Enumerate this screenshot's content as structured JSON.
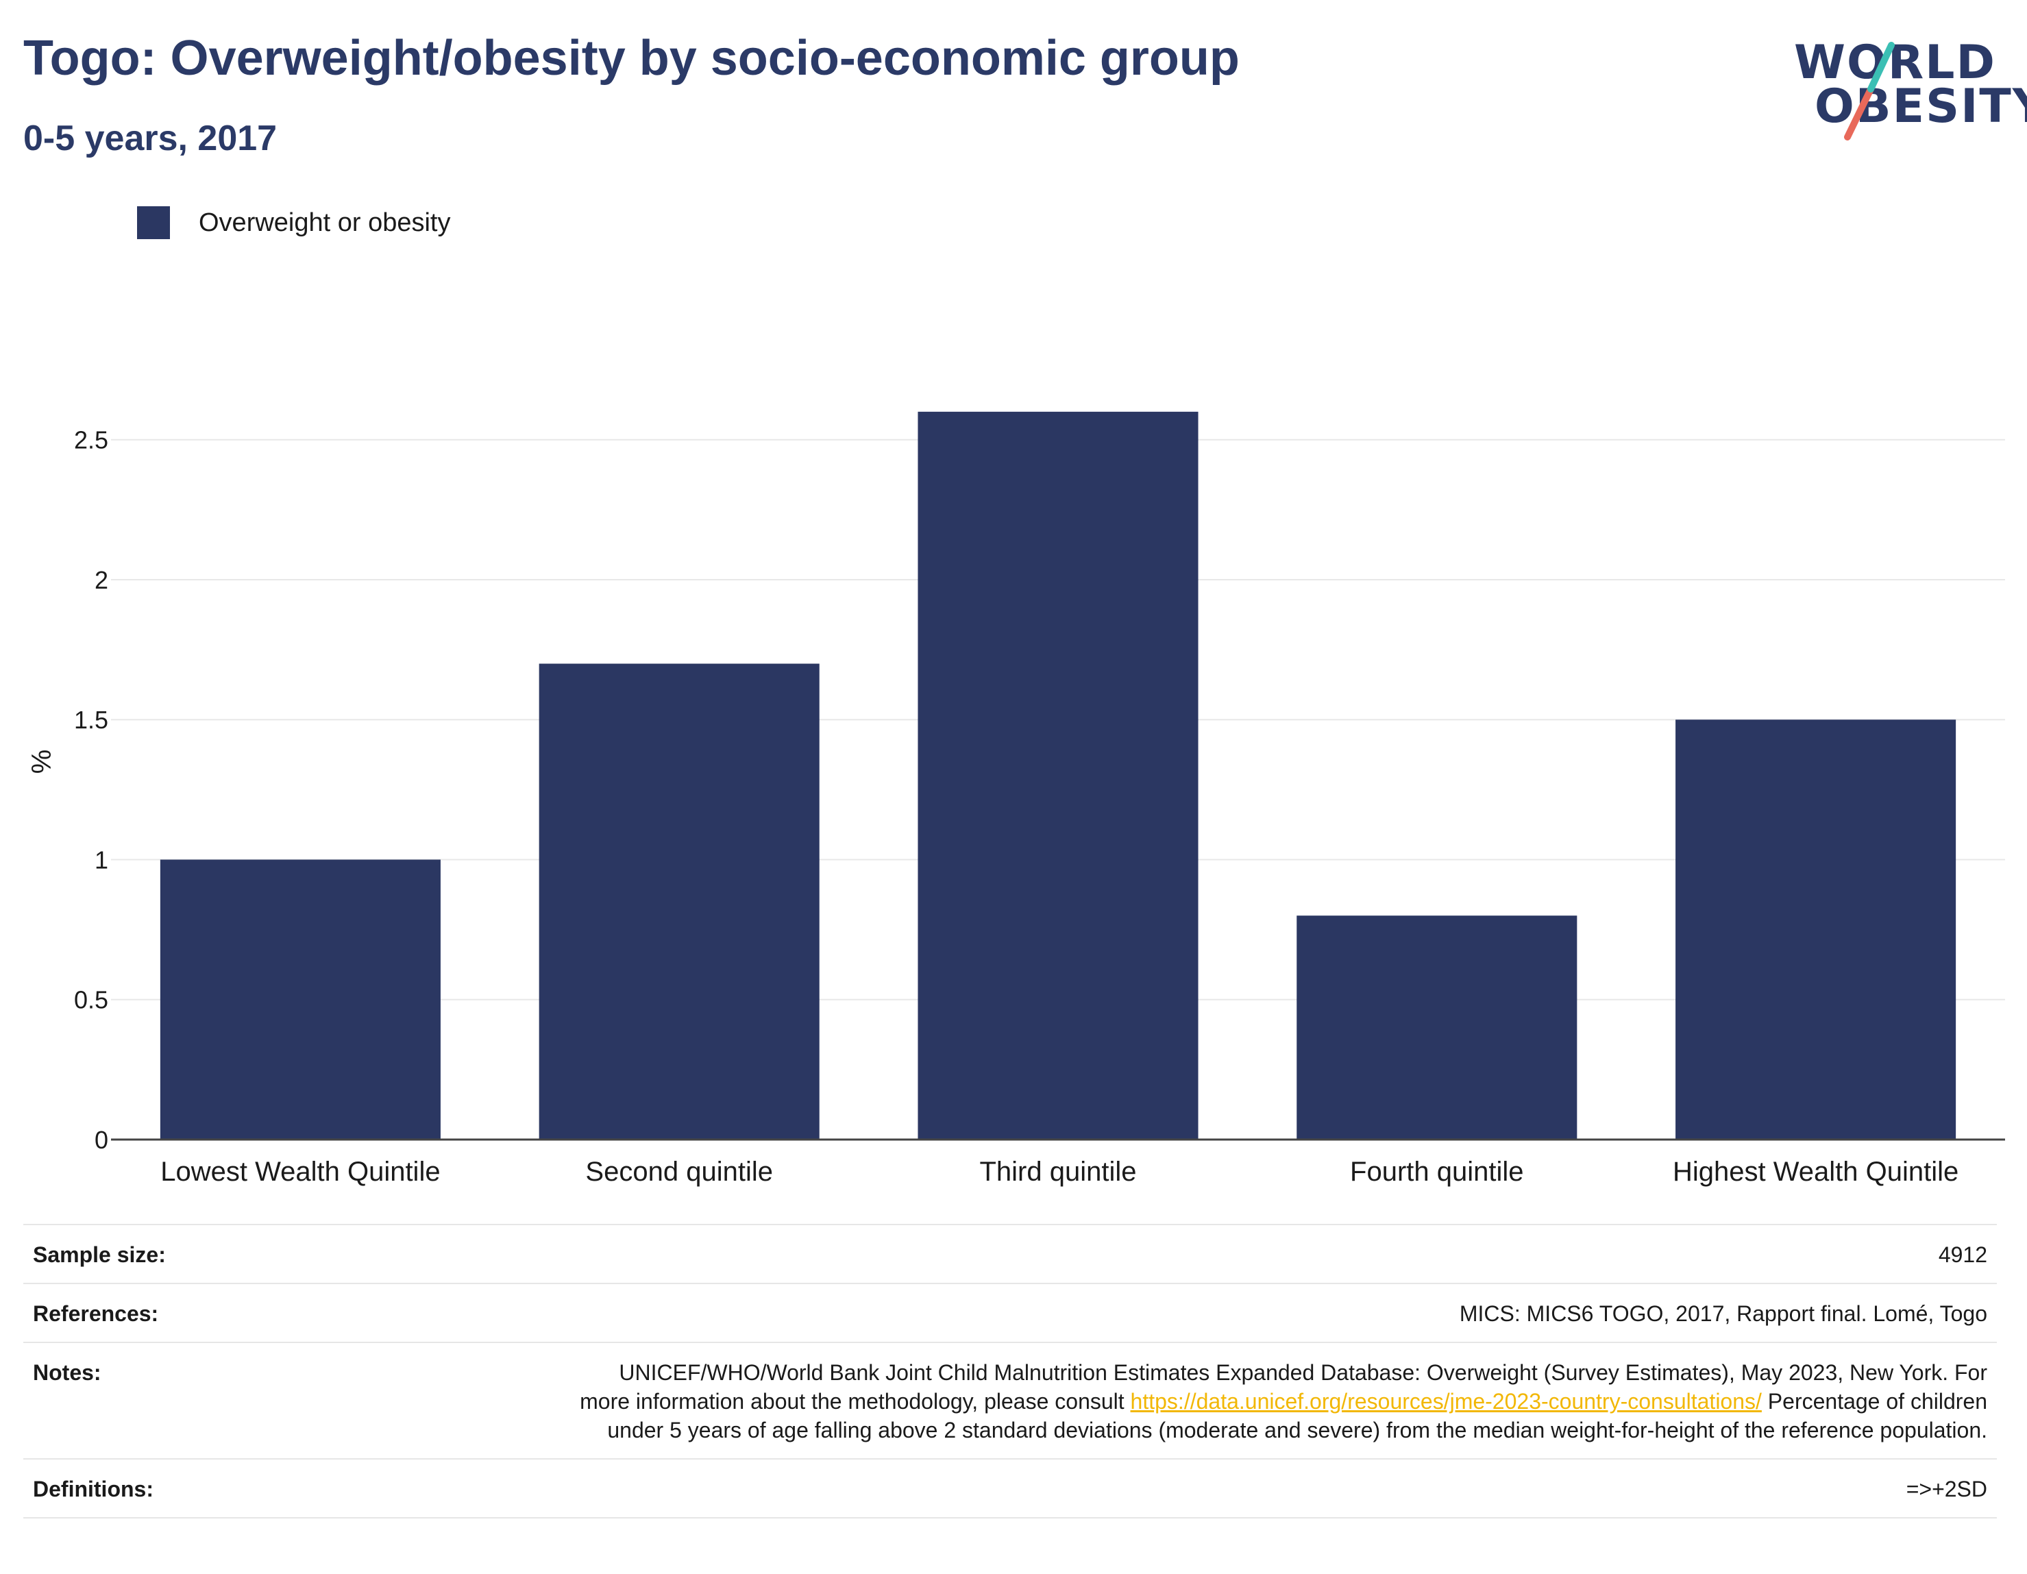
{
  "header": {
    "title": "Togo: Overweight/obesity by socio-economic group",
    "subtitle": "0-5 years, 2017"
  },
  "logo": {
    "line1": "WORLD",
    "line2": "OBESITY",
    "accent_teal": "#3bbfb4",
    "accent_coral": "#e8695a"
  },
  "colors": {
    "bar": "#2b3762",
    "title": "#2b3a67",
    "link": "#f2b705"
  },
  "chart_data": {
    "type": "bar",
    "categories": [
      "Lowest Wealth Quintile",
      "Second quintile",
      "Third quintile",
      "Fourth quintile",
      "Highest Wealth Quintile"
    ],
    "series": [
      {
        "name": "Overweight or obesity",
        "values": [
          1.0,
          1.7,
          2.6,
          0.8,
          1.5
        ]
      }
    ],
    "ylabel": "%",
    "ylim": [
      0,
      2.7
    ],
    "yticks": [
      0,
      0.5,
      1,
      1.5,
      2,
      2.5
    ],
    "ytick_labels": [
      "0",
      "0.5",
      "1",
      "1.5",
      "2",
      "2.5"
    ],
    "grid": true,
    "legend_position": "top-left"
  },
  "info": {
    "sample_size_label": "Sample size:",
    "sample_size_value": "4912",
    "references_label": "References:",
    "references_value": "MICS: MICS6 TOGO, 2017, Rapport final. Lomé, Togo",
    "notes_label": "Notes:",
    "notes_text1": "UNICEF/WHO/World Bank Joint Child Malnutrition Estimates Expanded Database: Overweight (Survey Estimates), May 2023, New York. For more information about the methodology, please consult ",
    "notes_link": "https://data.unicef.org/resources/jme-2023-country-consultations/",
    "notes_text2": " Percentage of children under 5 years of age falling above 2 standard deviations (moderate and severe) from the median weight-for-height of the reference population.",
    "definitions_label": "Definitions:",
    "definitions_value": "=>+2SD"
  }
}
